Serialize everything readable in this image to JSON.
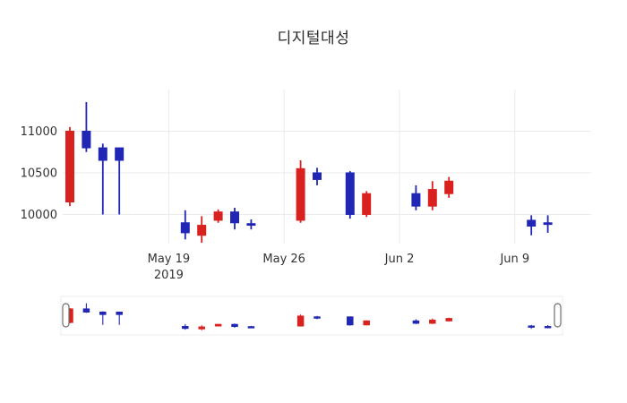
{
  "page": {
    "background": "#ffffff"
  },
  "chart_data": {
    "type": "candlestick",
    "title": "디지털대성",
    "up_color": "#d9221f",
    "down_color": "#2127b4",
    "grid_color": "#ebebeb",
    "tick_color": "#333333",
    "grid": true,
    "legend": "none",
    "yticks": [
      10000,
      10500,
      11000
    ],
    "ylim": [
      9650,
      11500
    ],
    "xticks": [
      {
        "date": "2019-05-19",
        "label": "May 19",
        "sublabel": "2019"
      },
      {
        "date": "2019-05-26",
        "label": "May 26",
        "sublabel": ""
      },
      {
        "date": "2019-06-02",
        "label": "Jun 2",
        "sublabel": ""
      },
      {
        "date": "2019-06-09",
        "label": "Jun 9",
        "sublabel": ""
      }
    ],
    "ohlc": [
      {
        "date": "2019-05-13",
        "open": 10150,
        "high": 11050,
        "low": 10100,
        "close": 11000
      },
      {
        "date": "2019-05-14",
        "open": 11000,
        "high": 11350,
        "low": 10750,
        "close": 10800
      },
      {
        "date": "2019-05-15",
        "open": 10800,
        "high": 10850,
        "low": 10000,
        "close": 10650
      },
      {
        "date": "2019-05-16",
        "open": 10800,
        "high": 10800,
        "low": 10000,
        "close": 10650
      },
      {
        "date": "2019-05-20",
        "open": 9900,
        "high": 10050,
        "low": 9700,
        "close": 9780
      },
      {
        "date": "2019-05-21",
        "open": 9750,
        "high": 9980,
        "low": 9660,
        "close": 9870
      },
      {
        "date": "2019-05-22",
        "open": 9930,
        "high": 10060,
        "low": 9900,
        "close": 10030
      },
      {
        "date": "2019-05-23",
        "open": 10030,
        "high": 10080,
        "low": 9820,
        "close": 9900
      },
      {
        "date": "2019-05-24",
        "open": 9890,
        "high": 9940,
        "low": 9820,
        "close": 9870
      },
      {
        "date": "2019-05-27",
        "open": 9930,
        "high": 10650,
        "low": 9900,
        "close": 10550
      },
      {
        "date": "2019-05-28",
        "open": 10500,
        "high": 10560,
        "low": 10350,
        "close": 10420
      },
      {
        "date": "2019-05-30",
        "open": 10500,
        "high": 10520,
        "low": 9950,
        "close": 10000
      },
      {
        "date": "2019-05-31",
        "open": 10000,
        "high": 10280,
        "low": 9970,
        "close": 10250
      },
      {
        "date": "2019-06-03",
        "open": 10250,
        "high": 10350,
        "low": 10050,
        "close": 10100
      },
      {
        "date": "2019-06-04",
        "open": 10100,
        "high": 10400,
        "low": 10050,
        "close": 10300
      },
      {
        "date": "2019-06-05",
        "open": 10250,
        "high": 10450,
        "low": 10200,
        "close": 10400
      },
      {
        "date": "2019-06-10",
        "open": 9930,
        "high": 9990,
        "low": 9750,
        "close": 9860
      },
      {
        "date": "2019-06-11",
        "open": 9900,
        "high": 9990,
        "low": 9780,
        "close": 9880
      }
    ],
    "rangeslider": true
  }
}
